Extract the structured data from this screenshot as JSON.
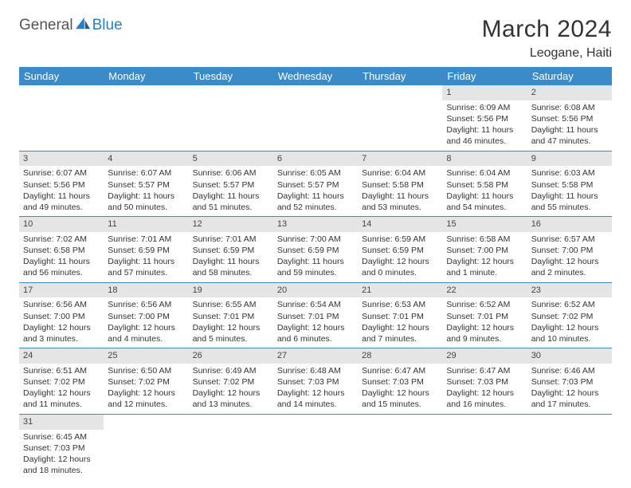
{
  "brand": {
    "part1": "General",
    "part2": "Blue"
  },
  "title": "March 2024",
  "location": "Leogane, Haiti",
  "colors": {
    "header_bg": "#3b8bc9",
    "header_text": "#ffffff",
    "daynum_bg": "#e5e5e5",
    "rule": "#3b8bc9",
    "brand_blue": "#2b7ec2",
    "text": "#333333",
    "background": "#ffffff"
  },
  "weekdays": [
    "Sunday",
    "Monday",
    "Tuesday",
    "Wednesday",
    "Thursday",
    "Friday",
    "Saturday"
  ],
  "cells": [
    {
      "n": "",
      "sr": "",
      "ss": "",
      "dl": ""
    },
    {
      "n": "",
      "sr": "",
      "ss": "",
      "dl": ""
    },
    {
      "n": "",
      "sr": "",
      "ss": "",
      "dl": ""
    },
    {
      "n": "",
      "sr": "",
      "ss": "",
      "dl": ""
    },
    {
      "n": "",
      "sr": "",
      "ss": "",
      "dl": ""
    },
    {
      "n": "1",
      "sr": "Sunrise: 6:09 AM",
      "ss": "Sunset: 5:56 PM",
      "dl": "Daylight: 11 hours and 46 minutes."
    },
    {
      "n": "2",
      "sr": "Sunrise: 6:08 AM",
      "ss": "Sunset: 5:56 PM",
      "dl": "Daylight: 11 hours and 47 minutes."
    },
    {
      "n": "3",
      "sr": "Sunrise: 6:07 AM",
      "ss": "Sunset: 5:56 PM",
      "dl": "Daylight: 11 hours and 49 minutes."
    },
    {
      "n": "4",
      "sr": "Sunrise: 6:07 AM",
      "ss": "Sunset: 5:57 PM",
      "dl": "Daylight: 11 hours and 50 minutes."
    },
    {
      "n": "5",
      "sr": "Sunrise: 6:06 AM",
      "ss": "Sunset: 5:57 PM",
      "dl": "Daylight: 11 hours and 51 minutes."
    },
    {
      "n": "6",
      "sr": "Sunrise: 6:05 AM",
      "ss": "Sunset: 5:57 PM",
      "dl": "Daylight: 11 hours and 52 minutes."
    },
    {
      "n": "7",
      "sr": "Sunrise: 6:04 AM",
      "ss": "Sunset: 5:58 PM",
      "dl": "Daylight: 11 hours and 53 minutes."
    },
    {
      "n": "8",
      "sr": "Sunrise: 6:04 AM",
      "ss": "Sunset: 5:58 PM",
      "dl": "Daylight: 11 hours and 54 minutes."
    },
    {
      "n": "9",
      "sr": "Sunrise: 6:03 AM",
      "ss": "Sunset: 5:58 PM",
      "dl": "Daylight: 11 hours and 55 minutes."
    },
    {
      "n": "10",
      "sr": "Sunrise: 7:02 AM",
      "ss": "Sunset: 6:58 PM",
      "dl": "Daylight: 11 hours and 56 minutes."
    },
    {
      "n": "11",
      "sr": "Sunrise: 7:01 AM",
      "ss": "Sunset: 6:59 PM",
      "dl": "Daylight: 11 hours and 57 minutes."
    },
    {
      "n": "12",
      "sr": "Sunrise: 7:01 AM",
      "ss": "Sunset: 6:59 PM",
      "dl": "Daylight: 11 hours and 58 minutes."
    },
    {
      "n": "13",
      "sr": "Sunrise: 7:00 AM",
      "ss": "Sunset: 6:59 PM",
      "dl": "Daylight: 11 hours and 59 minutes."
    },
    {
      "n": "14",
      "sr": "Sunrise: 6:59 AM",
      "ss": "Sunset: 6:59 PM",
      "dl": "Daylight: 12 hours and 0 minutes."
    },
    {
      "n": "15",
      "sr": "Sunrise: 6:58 AM",
      "ss": "Sunset: 7:00 PM",
      "dl": "Daylight: 12 hours and 1 minute."
    },
    {
      "n": "16",
      "sr": "Sunrise: 6:57 AM",
      "ss": "Sunset: 7:00 PM",
      "dl": "Daylight: 12 hours and 2 minutes."
    },
    {
      "n": "17",
      "sr": "Sunrise: 6:56 AM",
      "ss": "Sunset: 7:00 PM",
      "dl": "Daylight: 12 hours and 3 minutes."
    },
    {
      "n": "18",
      "sr": "Sunrise: 6:56 AM",
      "ss": "Sunset: 7:00 PM",
      "dl": "Daylight: 12 hours and 4 minutes."
    },
    {
      "n": "19",
      "sr": "Sunrise: 6:55 AM",
      "ss": "Sunset: 7:01 PM",
      "dl": "Daylight: 12 hours and 5 minutes."
    },
    {
      "n": "20",
      "sr": "Sunrise: 6:54 AM",
      "ss": "Sunset: 7:01 PM",
      "dl": "Daylight: 12 hours and 6 minutes."
    },
    {
      "n": "21",
      "sr": "Sunrise: 6:53 AM",
      "ss": "Sunset: 7:01 PM",
      "dl": "Daylight: 12 hours and 7 minutes."
    },
    {
      "n": "22",
      "sr": "Sunrise: 6:52 AM",
      "ss": "Sunset: 7:01 PM",
      "dl": "Daylight: 12 hours and 9 minutes."
    },
    {
      "n": "23",
      "sr": "Sunrise: 6:52 AM",
      "ss": "Sunset: 7:02 PM",
      "dl": "Daylight: 12 hours and 10 minutes."
    },
    {
      "n": "24",
      "sr": "Sunrise: 6:51 AM",
      "ss": "Sunset: 7:02 PM",
      "dl": "Daylight: 12 hours and 11 minutes."
    },
    {
      "n": "25",
      "sr": "Sunrise: 6:50 AM",
      "ss": "Sunset: 7:02 PM",
      "dl": "Daylight: 12 hours and 12 minutes."
    },
    {
      "n": "26",
      "sr": "Sunrise: 6:49 AM",
      "ss": "Sunset: 7:02 PM",
      "dl": "Daylight: 12 hours and 13 minutes."
    },
    {
      "n": "27",
      "sr": "Sunrise: 6:48 AM",
      "ss": "Sunset: 7:03 PM",
      "dl": "Daylight: 12 hours and 14 minutes."
    },
    {
      "n": "28",
      "sr": "Sunrise: 6:47 AM",
      "ss": "Sunset: 7:03 PM",
      "dl": "Daylight: 12 hours and 15 minutes."
    },
    {
      "n": "29",
      "sr": "Sunrise: 6:47 AM",
      "ss": "Sunset: 7:03 PM",
      "dl": "Daylight: 12 hours and 16 minutes."
    },
    {
      "n": "30",
      "sr": "Sunrise: 6:46 AM",
      "ss": "Sunset: 7:03 PM",
      "dl": "Daylight: 12 hours and 17 minutes."
    },
    {
      "n": "31",
      "sr": "Sunrise: 6:45 AM",
      "ss": "Sunset: 7:03 PM",
      "dl": "Daylight: 12 hours and 18 minutes."
    },
    {
      "n": "",
      "sr": "",
      "ss": "",
      "dl": ""
    },
    {
      "n": "",
      "sr": "",
      "ss": "",
      "dl": ""
    },
    {
      "n": "",
      "sr": "",
      "ss": "",
      "dl": ""
    },
    {
      "n": "",
      "sr": "",
      "ss": "",
      "dl": ""
    },
    {
      "n": "",
      "sr": "",
      "ss": "",
      "dl": ""
    },
    {
      "n": "",
      "sr": "",
      "ss": "",
      "dl": ""
    }
  ]
}
